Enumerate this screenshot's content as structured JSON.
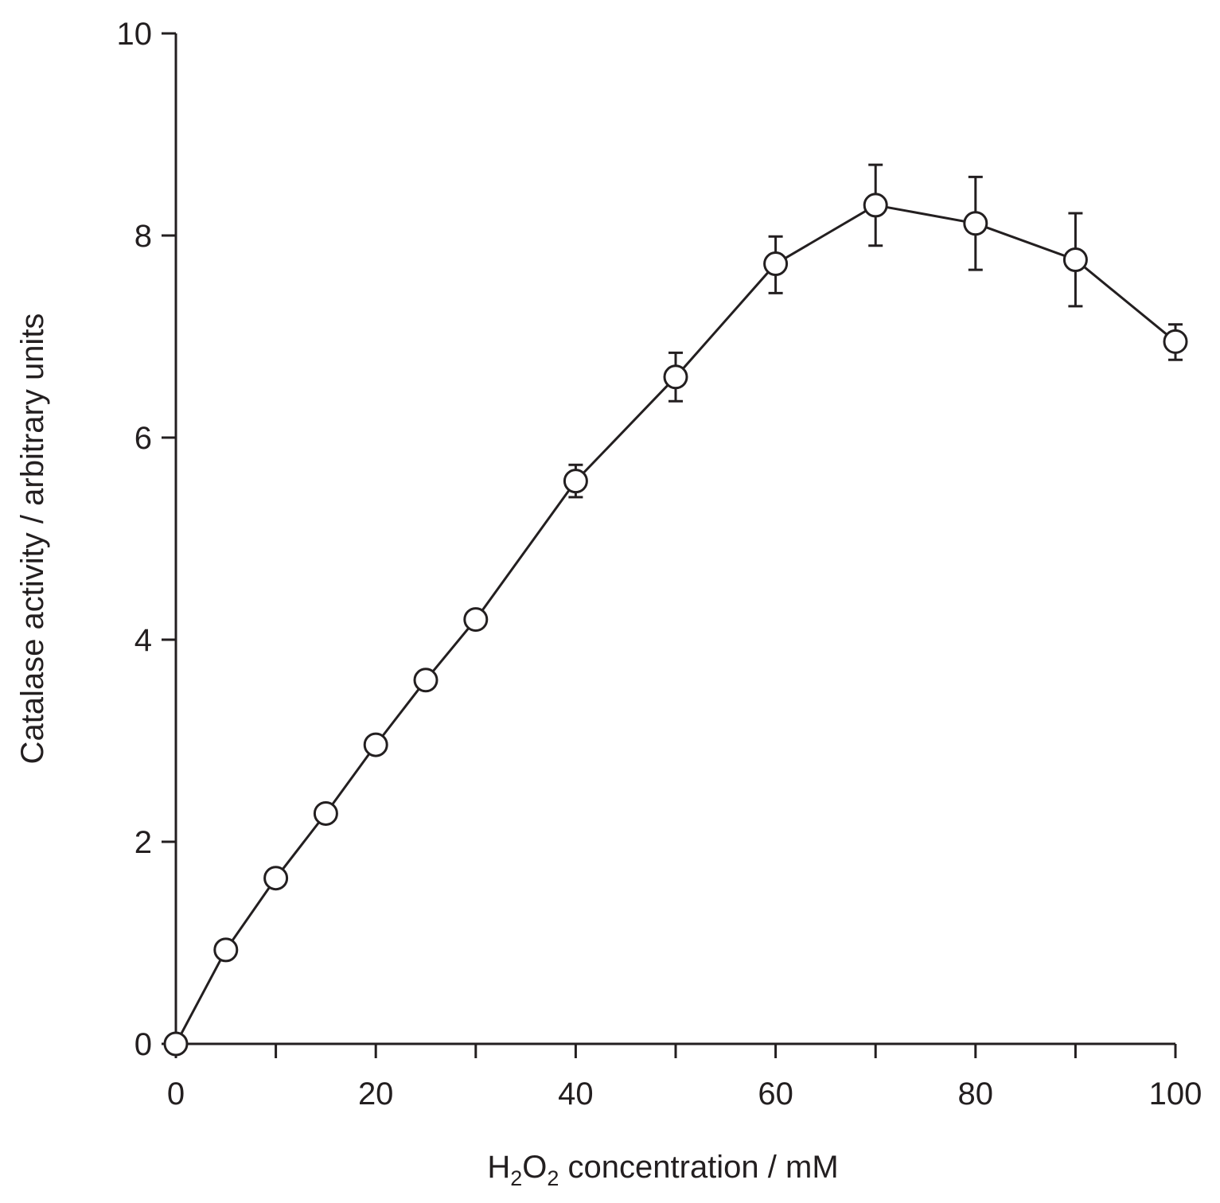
{
  "chart_data": {
    "type": "line",
    "xlabel": {
      "parts": [
        {
          "text": "H",
          "sub": false
        },
        {
          "text": "2",
          "sub": true
        },
        {
          "text": "O",
          "sub": false
        },
        {
          "text": "2",
          "sub": true
        },
        {
          "text": " concentration / mM",
          "sub": false
        }
      ]
    },
    "ylabel": "Catalase activity / arbitrary units",
    "xlim": [
      0,
      100
    ],
    "ylim": [
      0,
      10
    ],
    "x_ticks_major": [
      0,
      20,
      40,
      60,
      80,
      100
    ],
    "x_ticks_minor": [
      10,
      30,
      50,
      70,
      90
    ],
    "x_tick_labels": [
      "0",
      "20",
      "40",
      "60",
      "80",
      "100"
    ],
    "y_ticks": [
      0,
      2,
      4,
      6,
      8,
      10
    ],
    "y_tick_labels": [
      "0",
      "2",
      "4",
      "6",
      "8",
      "10"
    ],
    "grid": false,
    "series": [
      {
        "marker": "open-circle",
        "color": "#231f20",
        "points": [
          {
            "x": 0,
            "y": 0
          },
          {
            "x": 5,
            "y": 0.93
          },
          {
            "x": 10,
            "y": 1.64
          },
          {
            "x": 15,
            "y": 2.28
          },
          {
            "x": 20,
            "y": 2.96
          },
          {
            "x": 25,
            "y": 3.6
          },
          {
            "x": 30,
            "y": 4.2
          },
          {
            "x": 40,
            "y": 5.57,
            "err_low": 5.41,
            "err_high": 5.73
          },
          {
            "x": 50,
            "y": 6.6,
            "err_low": 6.36,
            "err_high": 6.84
          },
          {
            "x": 60,
            "y": 7.72,
            "err_low": 7.43,
            "err_high": 7.99
          },
          {
            "x": 70,
            "y": 8.3,
            "err_low": 7.9,
            "err_high": 8.7
          },
          {
            "x": 80,
            "y": 8.12,
            "err_low": 7.66,
            "err_high": 8.58
          },
          {
            "x": 90,
            "y": 7.76,
            "err_low": 7.3,
            "err_high": 8.22
          },
          {
            "x": 100,
            "y": 6.95,
            "err_low": 6.77,
            "err_high": 7.12
          }
        ]
      }
    ]
  }
}
